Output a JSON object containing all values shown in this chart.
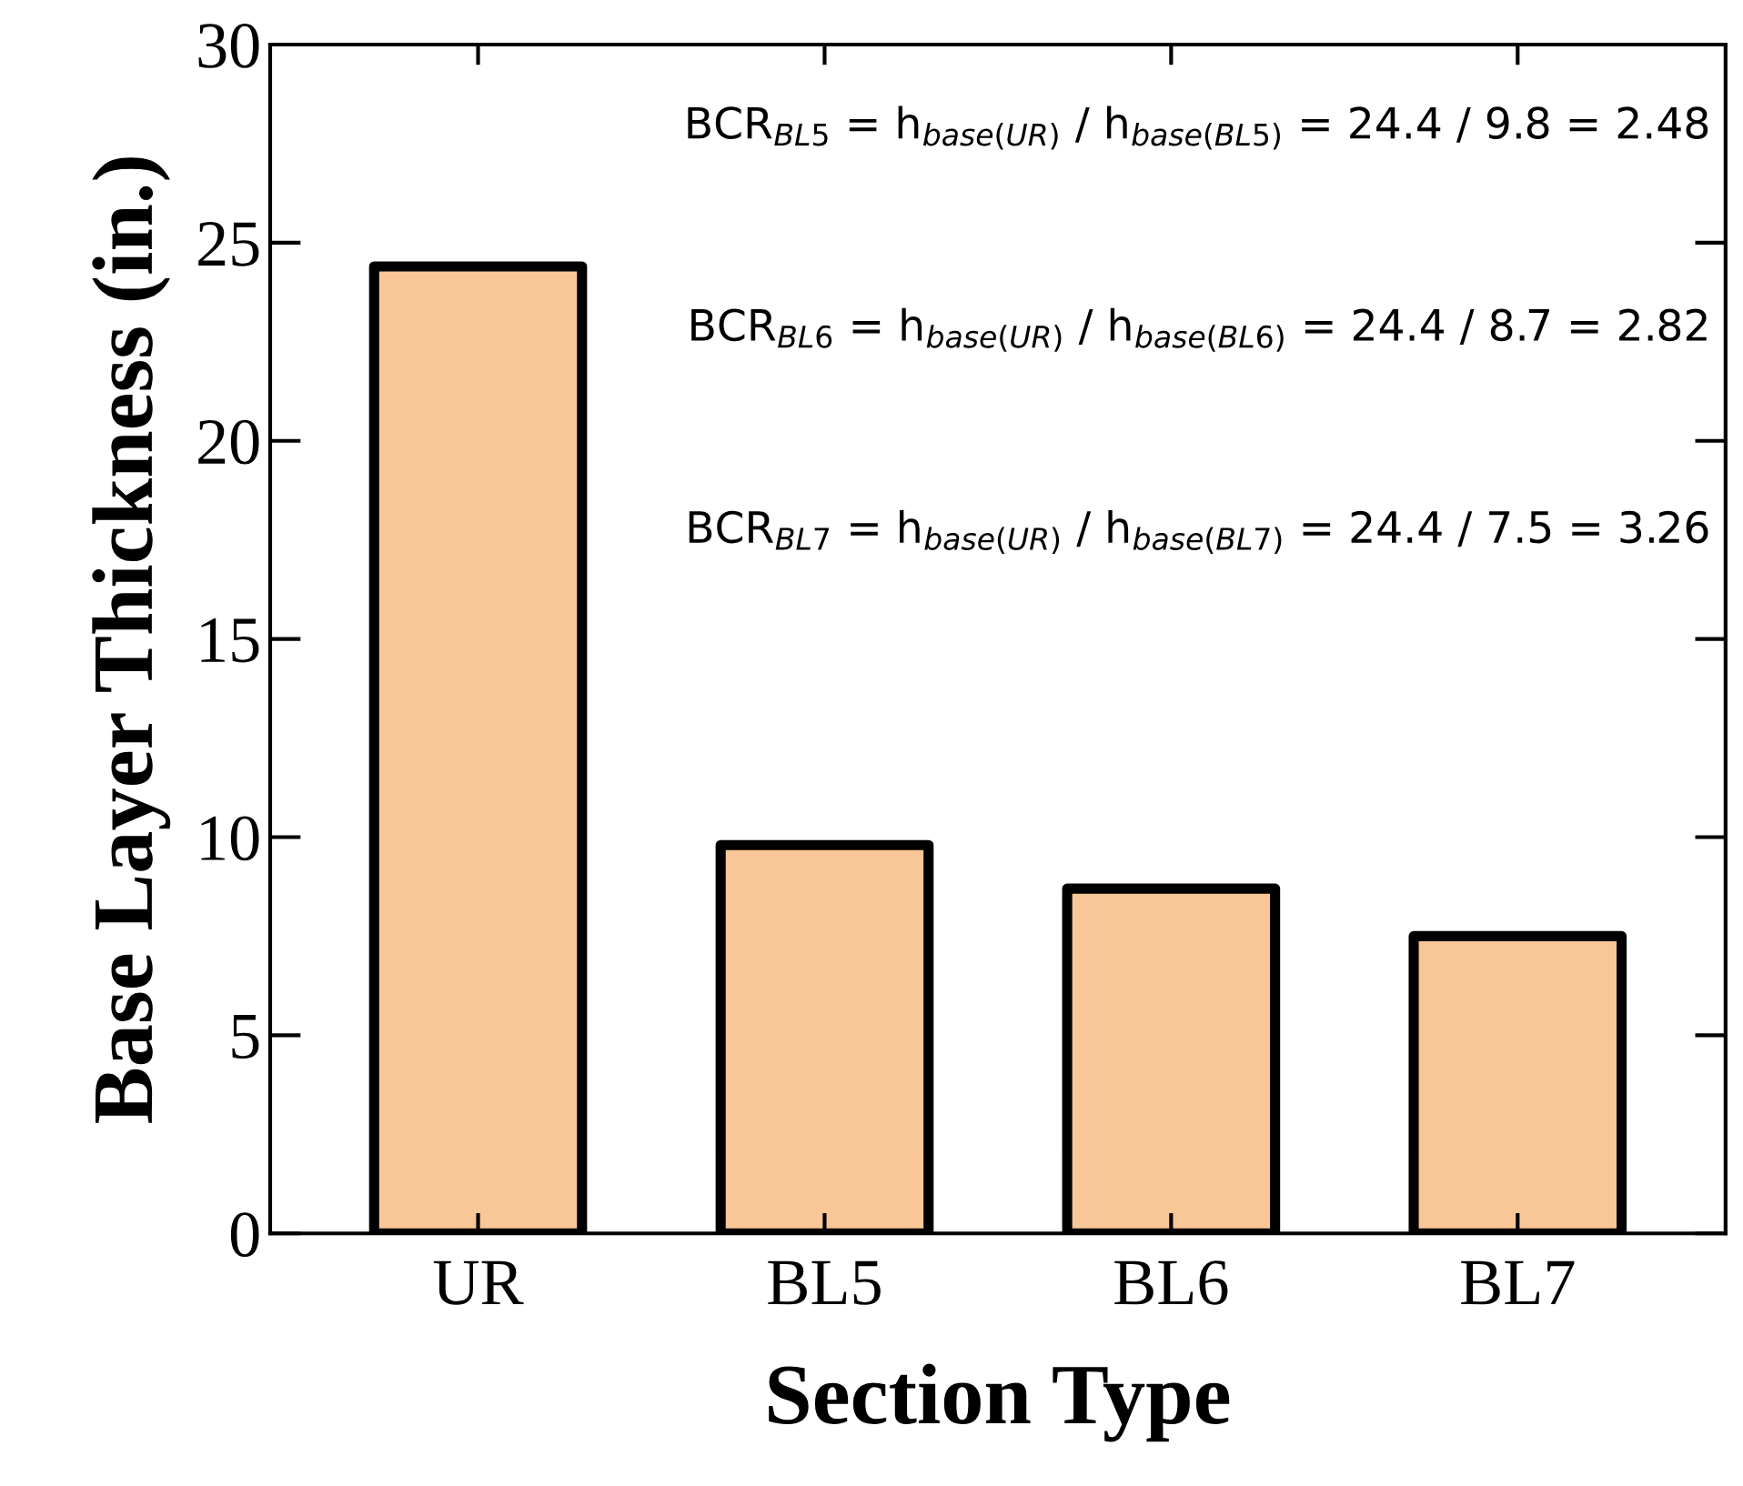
{
  "chart_data": {
    "type": "bar",
    "xlabel": "Section Type",
    "ylabel": "Base Layer Thickness (in.)",
    "categories": [
      "UR",
      "BL5",
      "BL6",
      "BL7"
    ],
    "values": [
      24.4,
      9.8,
      8.7,
      7.5
    ],
    "color": "#f9c697",
    "ylim": [
      0,
      30
    ],
    "yticks": [
      0,
      5,
      10,
      15,
      20,
      25,
      30
    ],
    "grid": false,
    "legend": false,
    "annotations": [
      "BCR$_{BL5}$ = h$_{base(UR)}$ / h$_{base(BL5)}$ = 24.4 / 9.8 = 2.48",
      "BCR$_{BL6}$ = h$_{base(UR)}$ / h$_{base(BL6)}$ = 24.4 / 8.7 = 2.82",
      "BCR$_{BL7}$ = h$_{base(UR)}$ / h$_{base(BL7)}$ = 24.4 / 7.5 = 3.26"
    ]
  }
}
